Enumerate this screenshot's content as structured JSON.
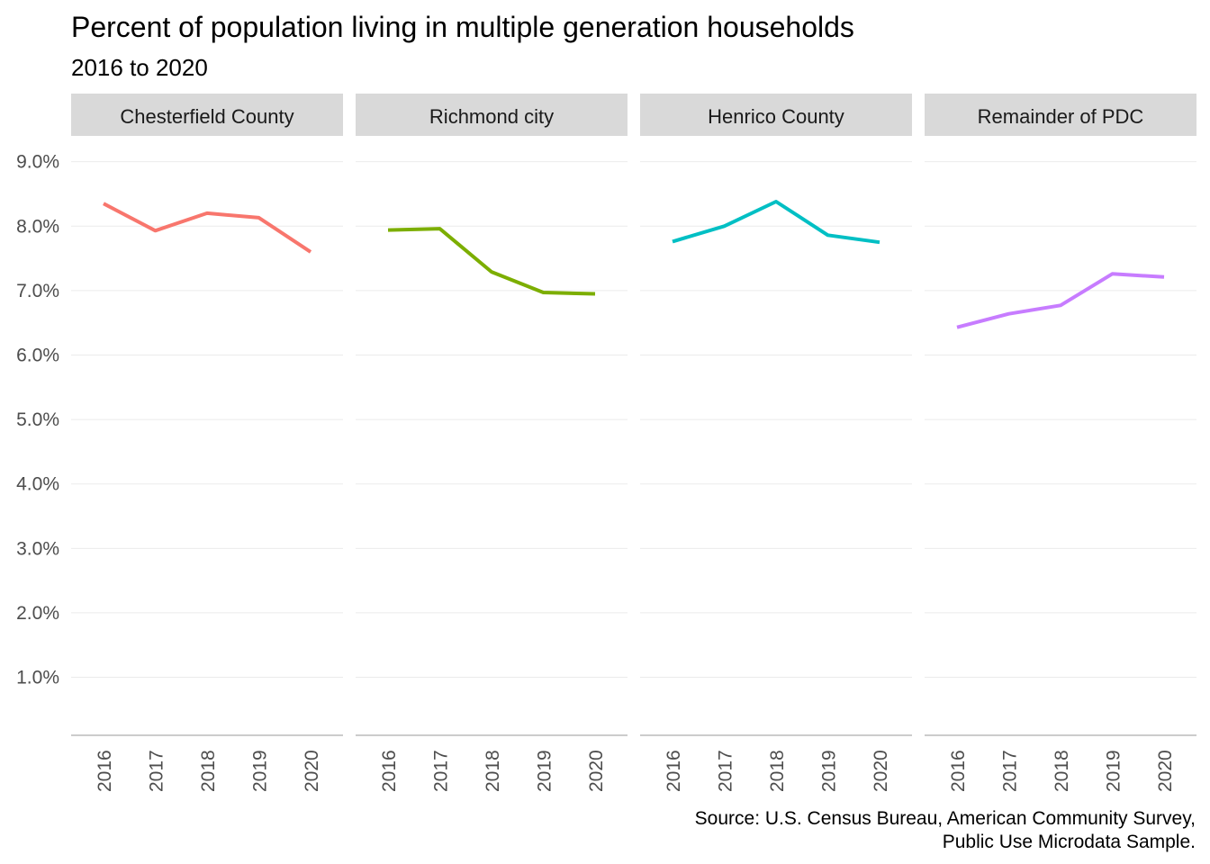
{
  "chart_data": {
    "type": "line",
    "title": "Percent of population living in multiple generation households",
    "subtitle": "2016 to 2020",
    "caption_lines": [
      "Source: U.S. Census Bureau, American Community Survey,",
      "Public Use Microdata Sample."
    ],
    "x": [
      "2016",
      "2017",
      "2018",
      "2019",
      "2020"
    ],
    "y_tick_labels": [
      "1.0%",
      "2.0%",
      "3.0%",
      "4.0%",
      "5.0%",
      "6.0%",
      "7.0%",
      "8.0%",
      "9.0%"
    ],
    "y_ticks": [
      1,
      2,
      3,
      4,
      5,
      6,
      7,
      8,
      9
    ],
    "ylim": [
      0.1,
      9.4
    ],
    "grid": true,
    "legend": "none",
    "panels": [
      {
        "name": "Chesterfield County",
        "color": "#F8766D",
        "values": [
          8.35,
          7.93,
          8.2,
          8.13,
          7.6
        ]
      },
      {
        "name": "Richmond city",
        "color": "#7CAE00",
        "values": [
          7.94,
          7.96,
          7.29,
          6.97,
          6.95
        ]
      },
      {
        "name": "Henrico County",
        "color": "#00BFC4",
        "values": [
          7.76,
          8.0,
          8.38,
          7.86,
          7.75
        ]
      },
      {
        "name": "Remainder of PDC",
        "color": "#C77CFF",
        "values": [
          6.43,
          6.64,
          6.77,
          7.26,
          7.21
        ]
      }
    ]
  }
}
